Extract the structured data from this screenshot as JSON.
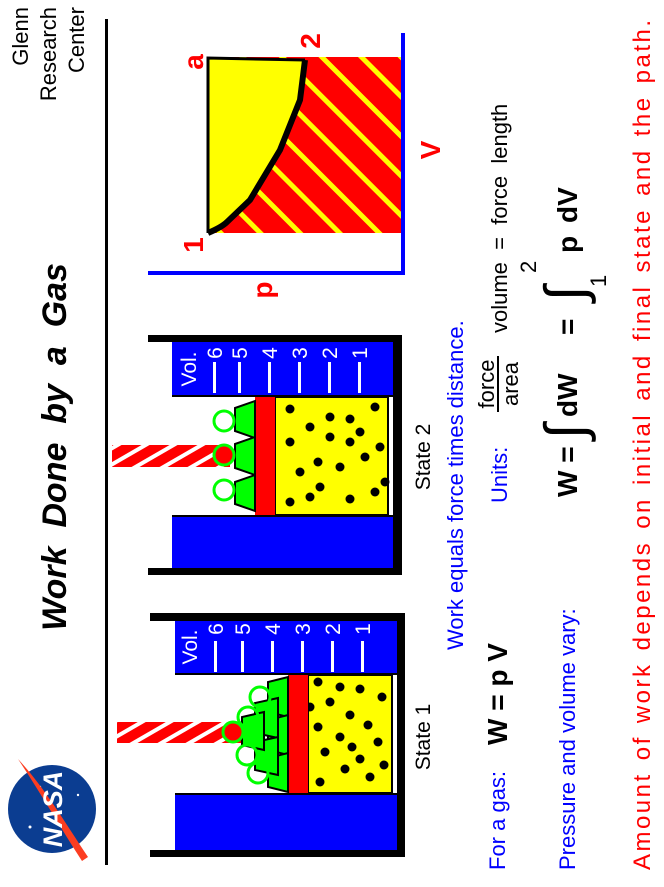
{
  "header": {
    "title": "Work  Done  by  a  Gas",
    "center_lines": [
      "Glenn",
      "Research",
      "Center"
    ],
    "logo_text": "NASA"
  },
  "states": [
    {
      "label": "State 1",
      "vol_heading": "Vol.",
      "vol_marks": [
        "6",
        "5",
        "4",
        "3",
        "2",
        "1"
      ]
    },
    {
      "label": "State 2",
      "vol_heading": "Vol.",
      "vol_marks": [
        "6",
        "5",
        "4",
        "3",
        "2",
        "1"
      ]
    }
  ],
  "pv_diagram": {
    "p_label": "p",
    "v_label": "V",
    "point_1": "1",
    "point_2": "2",
    "point_a": "a"
  },
  "text": {
    "work_statement": "Work equals force times distance.",
    "for_gas": "For a gas:",
    "w_eq_pv": "W = p V",
    "units_label": "Units:",
    "frac_num": "force",
    "frac_den": "area",
    "units_rest": "volume  =  force  length",
    "pv_vary": "Pressure and volume vary:",
    "formula": {
      "w": "W =",
      "dw": "dW",
      "eq2": "=",
      "upper": "2",
      "lower": "1",
      "p": "p",
      "dv": "dV"
    },
    "conclusion": "Amount of work depends on initial and final state and the path."
  },
  "colors": {
    "blue": "#0000ff",
    "red": "#ff0000",
    "yellow": "#ffff00",
    "green": "#00ff00"
  }
}
